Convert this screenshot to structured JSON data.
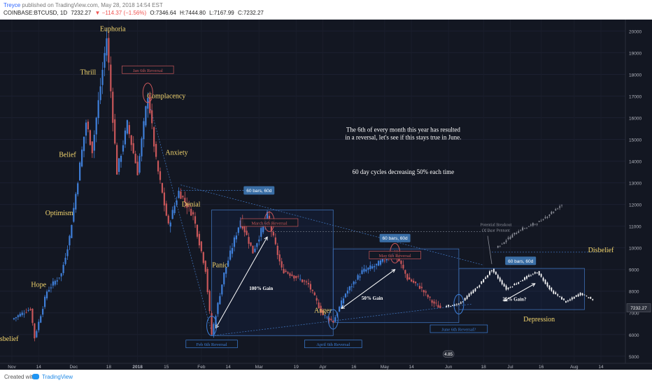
{
  "header": {
    "user": "Treyce",
    "published": "published on TradingView.com, May 28, 2018 14:54 EST",
    "symbol": "COINBASE:BTCUSD, 1D",
    "last": "7232.27",
    "change": "▼ −114.37 (−1.56%)",
    "open": "O:7346.64",
    "high": "H:7444.80",
    "low": "L:7167.99",
    "close": "C:7232.27"
  },
  "footer": {
    "created_with": "Created with",
    "brand": "TradingView"
  },
  "colors": {
    "background": "#131722",
    "up": "#3f7fd9",
    "down": "#c9575a",
    "projection": "#ffffff",
    "label_yellow": "#f5d76e",
    "box_border": "#3d6fb5",
    "badge": "#3a6ea5"
  },
  "chart_data": {
    "type": "candlestick",
    "symbol": "COINBASE:BTCUSD",
    "interval": "1D",
    "y_axis": {
      "ticks": [
        5000,
        6000,
        7000,
        8000,
        9000,
        10000,
        11000,
        12000,
        13000,
        14000,
        15000,
        16000,
        17000,
        18000,
        19000,
        20000
      ],
      "range": [
        4800,
        20400
      ],
      "last_price_label": "7232.27"
    },
    "x_axis": {
      "ticks": [
        "Nov",
        "14",
        "Dec",
        "18",
        "2018",
        "15",
        "Feb",
        "14",
        "Mar",
        "19",
        "Apr",
        "16",
        "May",
        "14",
        "Jun",
        "18",
        "Jul",
        "16",
        "Aug",
        "14"
      ]
    },
    "price_path_approx": [
      {
        "date": "2017-11-01",
        "price": 6700
      },
      {
        "date": "2017-11-10",
        "price": 7200
      },
      {
        "date": "2017-11-12",
        "price": 5850
      },
      {
        "date": "2017-11-18",
        "price": 8000
      },
      {
        "date": "2017-11-25",
        "price": 8800
      },
      {
        "date": "2017-11-29",
        "price": 10500
      },
      {
        "date": "2017-12-07",
        "price": 15800
      },
      {
        "date": "2017-12-10",
        "price": 14500
      },
      {
        "date": "2017-12-17",
        "price": 19700
      },
      {
        "date": "2017-12-22",
        "price": 13500
      },
      {
        "date": "2017-12-27",
        "price": 15700
      },
      {
        "date": "2018-01-01",
        "price": 13500
      },
      {
        "date": "2018-01-06",
        "price": 17100
      },
      {
        "date": "2018-01-10",
        "price": 14000
      },
      {
        "date": "2018-01-16",
        "price": 11000
      },
      {
        "date": "2018-01-21",
        "price": 12600
      },
      {
        "date": "2018-01-28",
        "price": 11500
      },
      {
        "date": "2018-02-03",
        "price": 9000
      },
      {
        "date": "2018-02-06",
        "price": 6000
      },
      {
        "date": "2018-02-12",
        "price": 8800
      },
      {
        "date": "2018-02-20",
        "price": 11300
      },
      {
        "date": "2018-02-26",
        "price": 9800
      },
      {
        "date": "2018-03-05",
        "price": 11500
      },
      {
        "date": "2018-03-12",
        "price": 9000
      },
      {
        "date": "2018-03-20",
        "price": 8600
      },
      {
        "date": "2018-03-25",
        "price": 8300
      },
      {
        "date": "2018-04-01",
        "price": 6900
      },
      {
        "date": "2018-04-06",
        "price": 6600
      },
      {
        "date": "2018-04-12",
        "price": 7900
      },
      {
        "date": "2018-04-20",
        "price": 8900
      },
      {
        "date": "2018-04-27",
        "price": 9200
      },
      {
        "date": "2018-05-06",
        "price": 9800
      },
      {
        "date": "2018-05-12",
        "price": 8600
      },
      {
        "date": "2018-05-18",
        "price": 8200
      },
      {
        "date": "2018-05-24",
        "price": 7500
      },
      {
        "date": "2018-05-28",
        "price": 7232
      }
    ],
    "projection_path_approx": [
      {
        "date": "2018-05-30",
        "price": 7300
      },
      {
        "date": "2018-06-06",
        "price": 7400
      },
      {
        "date": "2018-06-15",
        "price": 8200
      },
      {
        "date": "2018-06-22",
        "price": 9000
      },
      {
        "date": "2018-06-29",
        "price": 8100
      },
      {
        "date": "2018-07-08",
        "price": 8600
      },
      {
        "date": "2018-07-14",
        "price": 8900
      },
      {
        "date": "2018-07-21",
        "price": 8000
      },
      {
        "date": "2018-07-28",
        "price": 7500
      },
      {
        "date": "2018-08-04",
        "price": 7900
      },
      {
        "date": "2018-08-10",
        "price": 7600
      }
    ],
    "bull_projection_path_approx": [
      {
        "date": "2018-06-24",
        "price": 10000
      },
      {
        "date": "2018-07-05",
        "price": 10800
      },
      {
        "date": "2018-07-15",
        "price": 11200
      },
      {
        "date": "2018-07-26",
        "price": 12000
      }
    ],
    "psychology_labels": [
      {
        "text": "Disbelief",
        "date": "2017-10-29",
        "price": 5700
      },
      {
        "text": "Hope",
        "date": "2017-11-14",
        "price": 8200
      },
      {
        "text": "Optimism",
        "date": "2017-11-24",
        "price": 11500
      },
      {
        "text": "Belief",
        "date": "2017-11-28",
        "price": 14200
      },
      {
        "text": "Thrill",
        "date": "2017-12-08",
        "price": 18000
      },
      {
        "text": "Euphoria",
        "date": "2017-12-20",
        "price": 20000
      },
      {
        "text": "Complacency",
        "date": "2018-01-15",
        "price": 16900
      },
      {
        "text": "Anxiety",
        "date": "2018-01-20",
        "price": 14300
      },
      {
        "text": "Denial",
        "date": "2018-01-27",
        "price": 11900
      },
      {
        "text": "Panic",
        "date": "2018-02-10",
        "price": 9100
      },
      {
        "text": "Anger",
        "date": "2018-04-01",
        "price": 7000
      },
      {
        "text": "Depression",
        "date": "2018-07-15",
        "price": 6600
      },
      {
        "text": "Disbelief",
        "date": "2018-08-14",
        "price": 9800
      }
    ],
    "reversal_labels": [
      {
        "text": "Jan 6th Reversal",
        "date": "2018-01-06",
        "price": 18200,
        "color": "#c9575a"
      },
      {
        "text": "Feb 6th Reversal",
        "date": "2018-02-06",
        "price": 5550,
        "color": "#3d7fd9"
      },
      {
        "text": "March 6th Reversal",
        "date": "2018-03-06",
        "price": 11150,
        "color": "#c9575a"
      },
      {
        "text": "April 6th Reversal",
        "date": "2018-04-06",
        "price": 5550,
        "color": "#3d7fd9"
      },
      {
        "text": "May 6th Reversal",
        "date": "2018-05-06",
        "price": 9650,
        "color": "#c9575a"
      },
      {
        "text": "June 6th Reversal?",
        "date": "2018-06-06",
        "price": 6250,
        "color": "#3d7fd9"
      }
    ],
    "range_badges": [
      {
        "text": "60 bars, 60d",
        "date": "2018-02-29",
        "price": 12650
      },
      {
        "text": "60 bars, 60d",
        "date": "2018-05-06",
        "price": 10450
      },
      {
        "text": "60 bars, 60d",
        "date": "2018-07-06",
        "price": 9400
      }
    ],
    "gain_labels": [
      {
        "text": "100% Gain",
        "date": "2018-03-02",
        "price": 8050
      },
      {
        "text": "50% Gain",
        "date": "2018-04-25",
        "price": 7600
      },
      {
        "text": "25% Gain?",
        "date": "2018-07-03",
        "price": 7550
      }
    ],
    "annotations": [
      {
        "text": "The 6th of every month this year has resulted",
        "date": "2018-05-10",
        "price": 15350
      },
      {
        "text": "in a reversal, let's see if this stays true in June.",
        "date": "2018-05-10",
        "price": 15000
      },
      {
        "text": "60 day cycles decreasing 50% each time",
        "date": "2018-05-10",
        "price": 13400
      },
      {
        "text": "Potential Breakout",
        "date": "2018-06-24",
        "price": 11000
      },
      {
        "text": "Of Bear Pennant",
        "date": "2018-06-24",
        "price": 10750
      }
    ],
    "price_tag_circle": "4.85"
  }
}
